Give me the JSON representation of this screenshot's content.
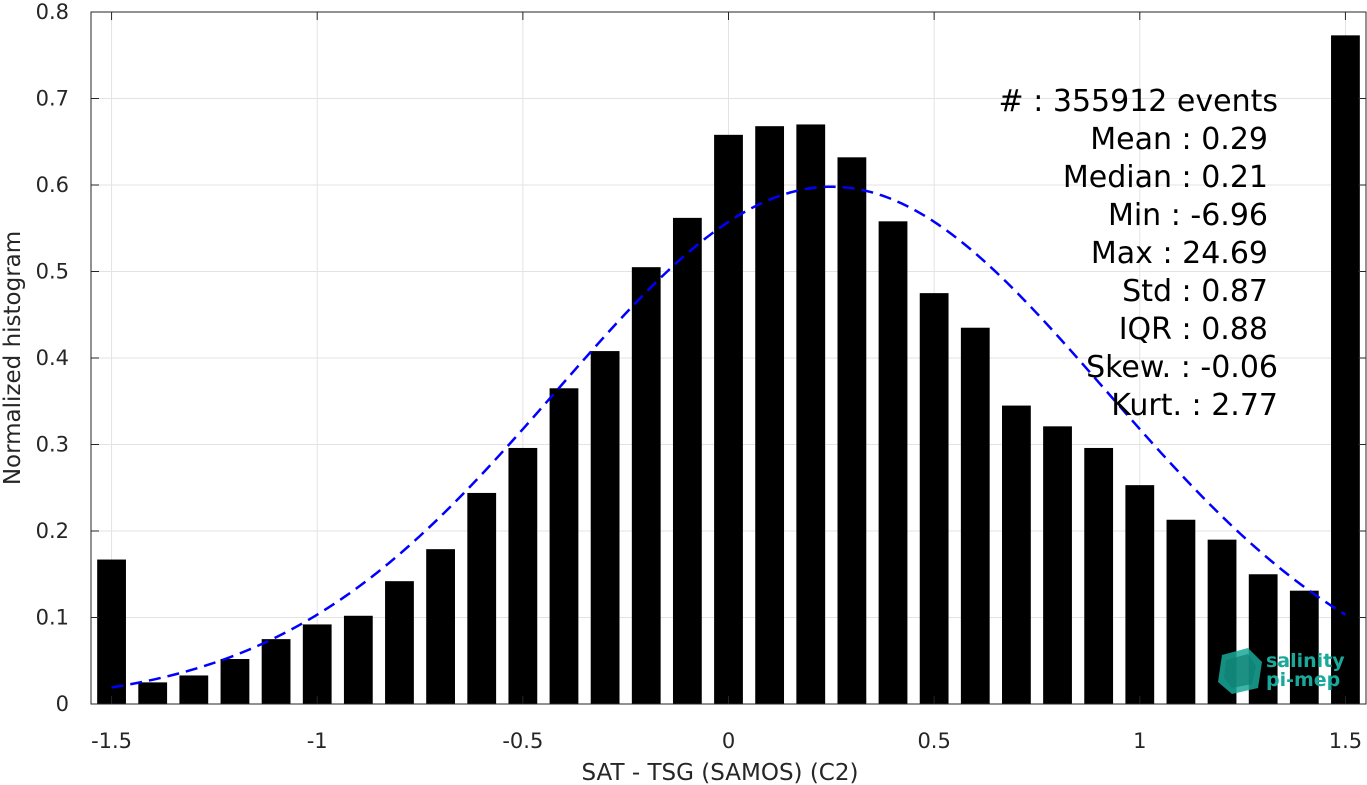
{
  "chart_data": {
    "type": "bar",
    "xlabel": "SAT - TSG (SAMOS) (C2)",
    "ylabel": "Normalized histogram",
    "xlim": [
      -1.55,
      1.55
    ],
    "ylim": [
      0,
      0.8
    ],
    "grid": true,
    "x_ticks": [
      -1.5,
      -1,
      -0.5,
      0,
      0.5,
      1,
      1.5
    ],
    "x_tick_labels": [
      "-1.5",
      "-1",
      "-0.5",
      "0",
      "0.5",
      "1",
      "1.5"
    ],
    "y_ticks": [
      0,
      0.1,
      0.2,
      0.3,
      0.4,
      0.5,
      0.6,
      0.7,
      0.8
    ],
    "y_tick_labels": [
      "0",
      "0.1",
      "0.2",
      "0.3",
      "0.4",
      "0.5",
      "0.6",
      "0.7",
      "0.8"
    ],
    "bar_width": 0.07,
    "x": [
      -1.5,
      -1.4,
      -1.3,
      -1.2,
      -1.1,
      -1.0,
      -0.9,
      -0.8,
      -0.7,
      -0.6,
      -0.5,
      -0.4,
      -0.3,
      -0.2,
      -0.1,
      0.0,
      0.1,
      0.2,
      0.3,
      0.4,
      0.5,
      0.6,
      0.7,
      0.8,
      0.9,
      1.0,
      1.1,
      1.2,
      1.3,
      1.4,
      1.5
    ],
    "values": [
      0.167,
      0.025,
      0.033,
      0.052,
      0.075,
      0.092,
      0.102,
      0.142,
      0.179,
      0.244,
      0.296,
      0.365,
      0.408,
      0.505,
      0.562,
      0.658,
      0.668,
      0.67,
      0.632,
      0.558,
      0.475,
      0.435,
      0.345,
      0.321,
      0.296,
      0.253,
      0.213,
      0.19,
      0.15,
      0.131,
      0.773
    ],
    "bar_color": "#000000",
    "fit_curve": {
      "style": "dashed",
      "color": "#0000ff",
      "mean": 0.25,
      "std": 0.667,
      "peak": 0.598,
      "x_range": [
        -1.5,
        1.5
      ]
    }
  },
  "stats": {
    "count": "#  : 355912 events",
    "mean": "Mean : 0.29",
    "median": "Median : 0.21",
    "min": "Min : -6.96",
    "max": "Max : 24.69",
    "std": "Std : 0.87",
    "iqr": "IQR : 0.88",
    "skew": "Skew. : -0.06",
    "kurt": "Kurt. : 2.77"
  },
  "logo": {
    "line1": "salinity",
    "line2": "pi-mep",
    "color": "#1aa89a"
  }
}
